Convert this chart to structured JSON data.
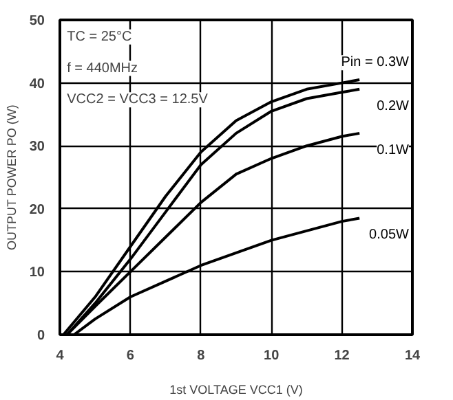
{
  "chart_data": {
    "type": "line",
    "xlabel": "1st VOLTAGE VCC1 (V)",
    "ylabel": "OUTPUT POWER PO (W)",
    "annotations": [
      "TC = 25°C",
      "f = 440MHz",
      "VCC2 = VCC3 = 12.5V"
    ],
    "xlim": [
      4,
      14
    ],
    "ylim": [
      0,
      50
    ],
    "xticks": [
      4,
      6,
      8,
      10,
      12,
      14
    ],
    "yticks": [
      0,
      10,
      20,
      30,
      40,
      50
    ],
    "grid": true,
    "marker": "none",
    "line_style": "solid",
    "series": [
      {
        "name": "Pin = 0.3W",
        "color": "#000000",
        "x": [
          4.1,
          5,
          6,
          7,
          8,
          9,
          10,
          11,
          12,
          12.5
        ],
        "values": [
          0,
          6,
          14,
          22,
          29,
          34,
          37,
          39,
          40,
          40.5
        ]
      },
      {
        "name": "0.2W",
        "color": "#000000",
        "x": [
          4.2,
          5,
          6,
          7,
          8,
          9,
          10,
          11,
          12,
          12.5
        ],
        "values": [
          0,
          5,
          12,
          19.5,
          27,
          32,
          35.5,
          37.5,
          38.5,
          39
        ]
      },
      {
        "name": "0.1W",
        "color": "#000000",
        "x": [
          4.2,
          5,
          6,
          7,
          8,
          9,
          10,
          11,
          12,
          12.5
        ],
        "values": [
          0,
          4.5,
          10,
          15.5,
          21,
          25.5,
          28,
          30,
          31.5,
          32
        ]
      },
      {
        "name": "0.05W",
        "color": "#000000",
        "x": [
          4.4,
          5,
          6,
          7,
          8,
          9,
          10,
          11,
          12,
          12.5
        ],
        "values": [
          0,
          2.5,
          6,
          8.5,
          11,
          13,
          15,
          16.5,
          18,
          18.5
        ]
      }
    ]
  }
}
